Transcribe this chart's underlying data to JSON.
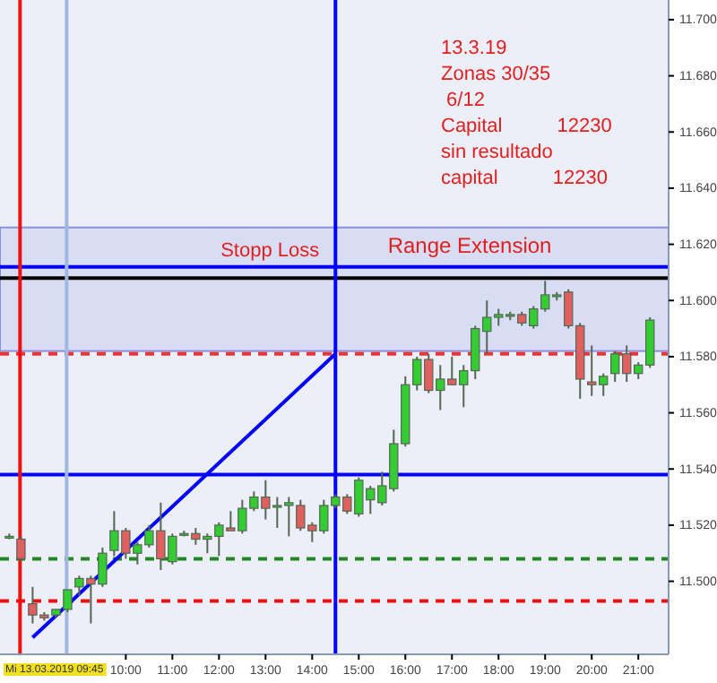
{
  "chart_data": {
    "type": "candlestick",
    "x": [
      7.5,
      7.75,
      8.0,
      8.25,
      8.5,
      8.75,
      9.0,
      9.25,
      9.5,
      9.75,
      10.0,
      10.25,
      10.5,
      10.75,
      11.0,
      11.25,
      11.5,
      11.75,
      12.0,
      12.25,
      12.5,
      12.75,
      13.0,
      13.25,
      13.5,
      13.75,
      14.0,
      14.25,
      14.5,
      14.75,
      15.0,
      15.25,
      15.5,
      15.75,
      16.0,
      16.25,
      16.5,
      16.75,
      17.0,
      17.25,
      17.5,
      17.75,
      18.0,
      18.25,
      18.5,
      18.75,
      19.0,
      19.25,
      19.5,
      19.75,
      20.0,
      20.25,
      20.5,
      20.75,
      21.0,
      21.25
    ],
    "ohlc": [
      [
        11516,
        11517,
        11515,
        11516
      ],
      [
        11515,
        11516,
        11507,
        11508
      ],
      [
        11492,
        11498,
        11485,
        11488
      ],
      [
        11488,
        11489,
        11486,
        11487
      ],
      [
        11488,
        11490,
        11487,
        11490
      ],
      [
        11490,
        11497,
        11489,
        11497
      ],
      [
        11498,
        11502,
        11495,
        11501
      ],
      [
        11501,
        11502,
        11485,
        11499
      ],
      [
        11499,
        11512,
        11498,
        11510
      ],
      [
        11511,
        11525,
        11509,
        11518
      ],
      [
        11518,
        11519,
        11508,
        11510
      ],
      [
        11510,
        11514,
        11506,
        11513
      ],
      [
        11513,
        11520,
        11512,
        11518
      ],
      [
        11518,
        11528,
        11504,
        11508
      ],
      [
        11507,
        11517,
        11506,
        11516
      ],
      [
        11517,
        11518,
        11516,
        11517
      ],
      [
        11517,
        11519,
        11513,
        11515
      ],
      [
        11515,
        11517,
        11510,
        11516
      ],
      [
        11516,
        11521,
        11509,
        11520
      ],
      [
        11519,
        11525,
        11518,
        11518
      ],
      [
        11518,
        11529,
        11517,
        11526
      ],
      [
        11526,
        11532,
        11525,
        11530
      ],
      [
        11530,
        11536,
        11522,
        11526
      ],
      [
        11527,
        11530,
        11519,
        11527
      ],
      [
        11527,
        11530,
        11516,
        11528
      ],
      [
        11527,
        11529,
        11518,
        11519
      ],
      [
        11520,
        11521,
        11514,
        11518
      ],
      [
        11518,
        11529,
        11517,
        11527
      ],
      [
        11527,
        11531,
        11526,
        11530
      ],
      [
        11530,
        11531,
        11524,
        11525
      ],
      [
        11524,
        11537,
        11523,
        11536
      ],
      [
        11529,
        11534,
        11524,
        11533
      ],
      [
        11528,
        11539,
        11527,
        11534
      ],
      [
        11533,
        11554,
        11532,
        11549
      ],
      [
        11549,
        11573,
        11548,
        11570
      ],
      [
        11570,
        11580,
        11568,
        11579
      ],
      [
        11579,
        11581,
        11567,
        11568
      ],
      [
        11568,
        11577,
        11561,
        11572
      ],
      [
        11572,
        11580,
        11570,
        11570
      ],
      [
        11570,
        11577,
        11562,
        11575
      ],
      [
        11575,
        11591,
        11572,
        11590
      ],
      [
        11589,
        11600,
        11581,
        11594
      ],
      [
        11594,
        11597,
        11591,
        11595
      ],
      [
        11595,
        11596,
        11593,
        11595
      ],
      [
        11595,
        11596,
        11591,
        11592
      ],
      [
        11591,
        11598,
        11590,
        11597
      ],
      [
        11597,
        11607,
        11596,
        11602
      ],
      [
        11602,
        11603,
        11600,
        11602
      ],
      [
        11603,
        11604,
        11590,
        11591
      ],
      [
        11591,
        11592,
        11565,
        11572
      ],
      [
        11571,
        11584,
        11566,
        11570
      ],
      [
        11570,
        11574,
        11566,
        11573
      ],
      [
        11574,
        11582,
        11571,
        11581
      ],
      [
        11581,
        11584,
        11571,
        11574
      ],
      [
        11574,
        11578,
        11572,
        11577
      ],
      [
        11577,
        11594,
        11576,
        11593
      ]
    ],
    "series": [
      {
        "type": "line",
        "color": "#0000ff",
        "x": [
          8.0,
          14.5
        ],
        "values": [
          11480,
          11581
        ]
      }
    ],
    "xlim": [
      7.3,
      21.65
    ],
    "ylim": [
      11474,
      11707
    ],
    "xticks": [
      {
        "value": 10,
        "label": "10:00"
      },
      {
        "value": 11,
        "label": "11:00"
      },
      {
        "value": 12,
        "label": "12:00"
      },
      {
        "value": 13,
        "label": "13:00"
      },
      {
        "value": 14,
        "label": "14:00"
      },
      {
        "value": 15,
        "label": "15:00"
      },
      {
        "value": 16,
        "label": "16:00"
      },
      {
        "value": 17,
        "label": "17:00"
      },
      {
        "value": 18,
        "label": "18:00"
      },
      {
        "value": 19,
        "label": "19:00"
      },
      {
        "value": 20,
        "label": "20:00"
      },
      {
        "value": 21,
        "label": "21:00"
      }
    ],
    "yticks": [
      {
        "value": 11500,
        "label": "11.500"
      },
      {
        "value": 11520,
        "label": "11.520"
      },
      {
        "value": 11540,
        "label": "11.540"
      },
      {
        "value": 11560,
        "label": "11.560"
      },
      {
        "value": 11580,
        "label": "11.580"
      },
      {
        "value": 11600,
        "label": "11.600"
      },
      {
        "value": 11620,
        "label": "11.620"
      },
      {
        "value": 11640,
        "label": "11.640"
      },
      {
        "value": 11660,
        "label": "11.660"
      },
      {
        "value": 11680,
        "label": "11.680"
      },
      {
        "value": 11700,
        "label": "11.700"
      }
    ],
    "bands": [
      {
        "axis": "y",
        "from": 11582,
        "to": 11626,
        "label": "Range Extension",
        "color": "#c8d0f0"
      }
    ],
    "ref_lines": [
      {
        "axis": "y",
        "value": 11608,
        "label": "Stopp Loss",
        "color": "#000000",
        "line_style": "solid"
      },
      {
        "axis": "y",
        "value": 11612,
        "color": "#0000ff",
        "line_style": "solid"
      },
      {
        "axis": "y",
        "value": 11581,
        "color": "#ee3333",
        "line_style": "dashed"
      },
      {
        "axis": "y",
        "value": 11538,
        "color": "#0000ff",
        "line_style": "solid"
      },
      {
        "axis": "y",
        "value": 11508,
        "color": "#228822",
        "line_style": "dashed"
      },
      {
        "axis": "y",
        "value": 11493,
        "color": "#ee1111",
        "line_style": "dashed"
      },
      {
        "axis": "x",
        "value": 7.73,
        "color": "#ee1111",
        "line_style": "solid"
      },
      {
        "axis": "x",
        "value": 8.73,
        "color": "#a0b8e0",
        "line_style": "solid"
      },
      {
        "axis": "x",
        "value": 14.5,
        "color": "#0000ff",
        "line_style": "solid"
      }
    ],
    "annotations": [
      "13.3.19",
      "Zonas 30/35",
      " 6/12",
      "Capital          12230",
      "sin resultado",
      "capital          12230",
      "Mi 13.03.2019 09:45"
    ],
    "grid": false
  }
}
